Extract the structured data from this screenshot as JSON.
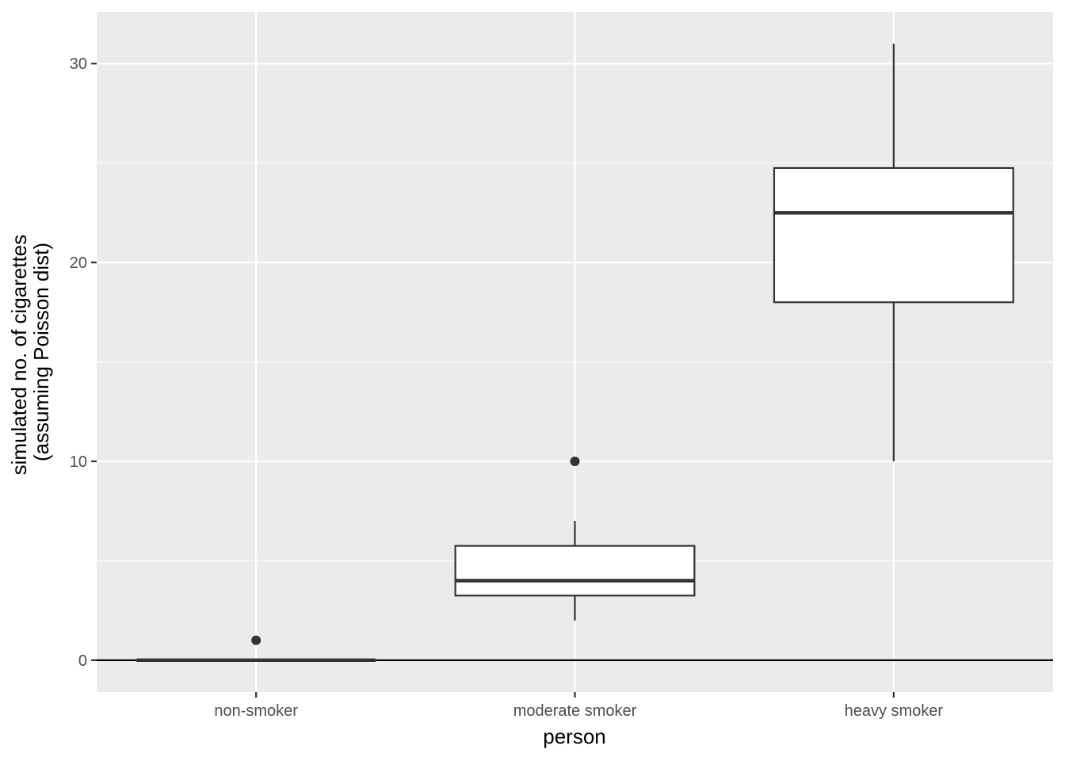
{
  "chart_data": {
    "type": "boxplot",
    "title": "",
    "xlabel": "person",
    "ylabel_lines": [
      "simulated no. of cigarettes",
      "(assuming Poisson dist)"
    ],
    "categories": [
      "non-smoker",
      "moderate smoker",
      "heavy smoker"
    ],
    "y_ticks": [
      0,
      10,
      20,
      30
    ],
    "y_tick_labels": [
      "0",
      "10",
      "20",
      "30"
    ],
    "ylim": [
      -1.6,
      32.6
    ],
    "grid": true,
    "reference_line_y": 0,
    "boxes": [
      {
        "category": "non-smoker",
        "min": 0,
        "q1": 0,
        "median": 0,
        "q3": 0,
        "max": 0,
        "outliers": [
          1
        ]
      },
      {
        "category": "moderate smoker",
        "min": 2,
        "q1": 3.25,
        "median": 4,
        "q3": 5.75,
        "max": 7,
        "outliers": [
          10
        ]
      },
      {
        "category": "heavy smoker",
        "min": 10,
        "q1": 18,
        "median": 22.5,
        "q3": 24.75,
        "max": 31,
        "outliers": []
      }
    ],
    "colors": {
      "panel_background": "#ebebeb",
      "grid": "#ffffff",
      "box_fill": "#ffffff",
      "box_stroke": "#333333",
      "reference_line": "#000000"
    }
  }
}
